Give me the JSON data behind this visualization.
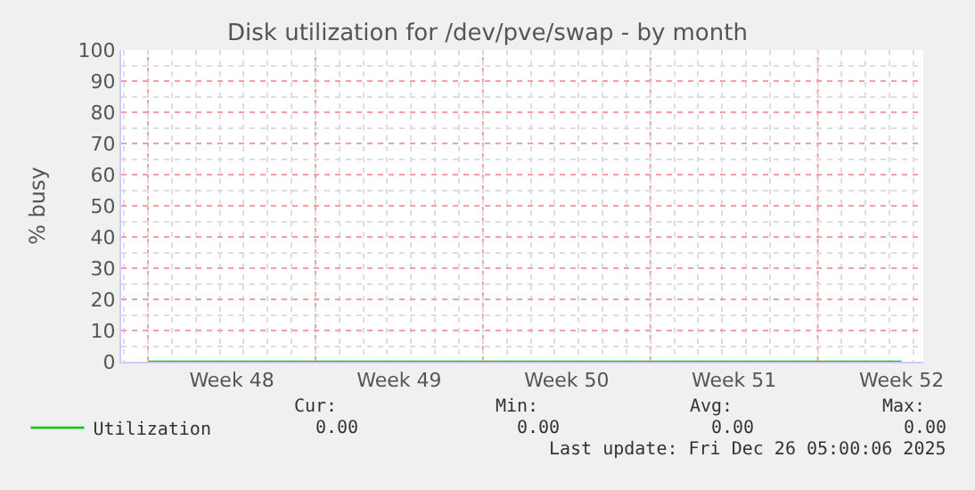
{
  "chart_data": {
    "type": "line",
    "title": "Disk utilization for /dev/pve/swap - by month",
    "ylabel": "% busy",
    "categories": [
      null,
      "Week 48",
      null,
      "Week 49",
      null,
      "Week 50",
      null,
      "Week 51",
      null,
      "Week 52"
    ],
    "series": [
      {
        "name": "Utilization",
        "color": "#00cc00",
        "values": [
          0,
          0,
          0,
          0,
          0,
          0,
          0,
          0,
          0,
          0
        ]
      }
    ],
    "ylim": [
      0,
      100
    ],
    "yticks": [
      0,
      10,
      20,
      30,
      40,
      50,
      60,
      70,
      80,
      90,
      100
    ],
    "grid": true,
    "legend": "bottom left",
    "line_style": "solid",
    "annotations": [
      "Cur:",
      "Min:",
      "Avg:",
      "Max:",
      "0.00",
      "0.00",
      "0.00",
      "0.00",
      "Last update: Fri Dec 26 05:00:06 2025"
    ]
  }
}
